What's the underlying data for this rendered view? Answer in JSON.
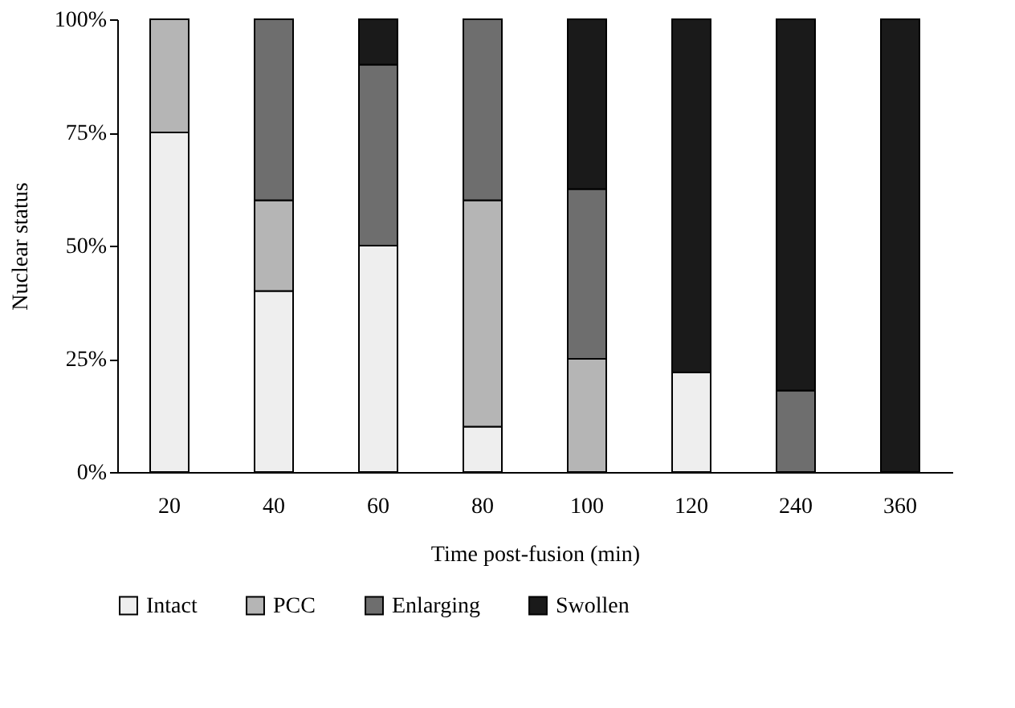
{
  "chart_data": {
    "type": "bar",
    "stacked": true,
    "xlabel": "Time post-fusion (min)",
    "ylabel": "Nuclear status",
    "categories": [
      "20",
      "40",
      "60",
      "80",
      "100",
      "120",
      "240",
      "360"
    ],
    "series": [
      {
        "name": "Intact",
        "color": "#eeeeee",
        "values": [
          75,
          40,
          50,
          10,
          0,
          22,
          0,
          0
        ]
      },
      {
        "name": "PCC",
        "color": "#b5b5b5",
        "values": [
          25,
          20,
          0,
          50,
          25,
          0,
          0,
          0
        ]
      },
      {
        "name": "Enlarging",
        "color": "#6e6e6e",
        "values": [
          0,
          40,
          40,
          40,
          37.5,
          0,
          18,
          0
        ]
      },
      {
        "name": "Swollen",
        "color": "#1a1a1a",
        "values": [
          0,
          0,
          10,
          0,
          37.5,
          78,
          82,
          100
        ]
      }
    ],
    "ylim": [
      0,
      100
    ],
    "yticks": [
      {
        "value": 0,
        "label": "0%"
      },
      {
        "value": 25,
        "label": "25%"
      },
      {
        "value": 50,
        "label": "50%"
      },
      {
        "value": 75,
        "label": "75%"
      },
      {
        "value": 100,
        "label": "100%"
      }
    ],
    "grid": false,
    "legend": "bottom"
  }
}
